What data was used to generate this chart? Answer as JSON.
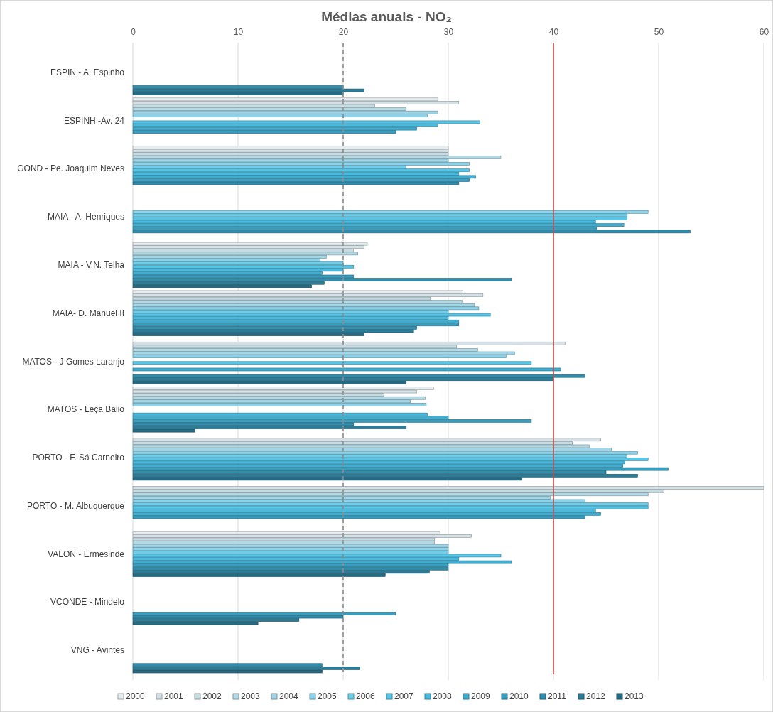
{
  "chart_data": {
    "type": "bar",
    "orientation": "horizontal",
    "title": "Médias anuais - NO₂",
    "categories": [
      "ESPIN - A. Espinho",
      "ESPINH -Av. 24",
      "GOND - Pe. Joaquim Neves",
      "MAIA - A. Henriques",
      "MAIA - V.N. Telha",
      "MAIA- D. Manuel II",
      "MATOS - J Gomes Laranjo",
      "MATOS - Leça Balio",
      "PORTO - F. Sá Carneiro",
      "PORTO - M. Albuquerque",
      "VALON - Ermesinde",
      "VCONDE - Mindelo",
      "VNG - Avintes"
    ],
    "series": [
      {
        "name": "2000",
        "color": "#e6edf0",
        "values": [
          null,
          29,
          30,
          null,
          22.3,
          31.4,
          null,
          28.6,
          null,
          null,
          29.2,
          null,
          null
        ]
      },
      {
        "name": "2001",
        "color": "#d5e1e6",
        "values": [
          null,
          31,
          30,
          null,
          22,
          33.3,
          41.1,
          27,
          44.5,
          60,
          32.2,
          null,
          null
        ]
      },
      {
        "name": "2002",
        "color": "#c6dce3",
        "values": [
          null,
          23,
          30,
          null,
          21,
          28.3,
          30.8,
          23.9,
          41.8,
          50.5,
          28.7,
          null,
          null
        ]
      },
      {
        "name": "2003",
        "color": "#b3d9e5",
        "values": [
          null,
          26,
          35,
          null,
          21.4,
          31.3,
          32.8,
          27.8,
          43.4,
          49,
          28.7,
          null,
          null
        ]
      },
      {
        "name": "2004",
        "color": "#a0d6e7",
        "values": [
          null,
          29,
          30,
          null,
          18.4,
          32.5,
          36.3,
          26.4,
          45.5,
          39.7,
          30,
          null,
          null
        ]
      },
      {
        "name": "2005",
        "color": "#8bd3ea",
        "values": [
          null,
          28,
          32,
          49,
          17.8,
          32.9,
          35.5,
          27.9,
          48,
          43,
          30,
          null,
          null
        ]
      },
      {
        "name": "2006",
        "color": "#6dceec",
        "values": [
          null,
          null,
          26,
          47,
          20,
          30,
          null,
          null,
          47,
          49,
          30,
          null,
          null
        ]
      },
      {
        "name": "2007",
        "color": "#55c6e7",
        "values": [
          null,
          33,
          32,
          47,
          21,
          34,
          37.9,
          null,
          49,
          49,
          35,
          null,
          null
        ]
      },
      {
        "name": "2008",
        "color": "#46bbdf",
        "values": [
          null,
          29,
          31,
          44,
          20,
          30,
          null,
          28,
          46.8,
          44,
          31,
          null,
          null
        ]
      },
      {
        "name": "2009",
        "color": "#3faed1",
        "values": [
          null,
          27,
          32.6,
          46.7,
          18,
          31,
          40.7,
          30,
          46.6,
          44.5,
          36,
          null,
          null
        ]
      },
      {
        "name": "2010",
        "color": "#389ebf",
        "values": [
          null,
          25,
          32,
          44.1,
          21,
          31,
          null,
          37.9,
          50.9,
          43,
          30,
          25,
          null
        ]
      },
      {
        "name": "2011",
        "color": "#318dac",
        "values": [
          20,
          null,
          31,
          53,
          36,
          27,
          43,
          21,
          45,
          null,
          30,
          20,
          18
        ]
      },
      {
        "name": "2012",
        "color": "#2b7c98",
        "values": [
          22,
          null,
          null,
          null,
          18.2,
          26.7,
          40,
          26,
          48,
          null,
          28.2,
          15.8,
          21.6
        ]
      },
      {
        "name": "2013",
        "color": "#246b85",
        "values": [
          20,
          null,
          null,
          null,
          17,
          22,
          26,
          5.9,
          37,
          null,
          24,
          11.9,
          18
        ]
      }
    ],
    "xlim": [
      0,
      60
    ],
    "xticks": [
      0,
      10,
      20,
      30,
      40,
      50,
      60
    ],
    "grid": "x",
    "legend": "bottom",
    "ref_lines": [
      {
        "axis": "x",
        "value": 20,
        "color": "#8c8c8c",
        "line_style": "dashed"
      },
      {
        "axis": "x",
        "value": 40,
        "color": "#c0504d",
        "line_style": "solid"
      }
    ]
  }
}
